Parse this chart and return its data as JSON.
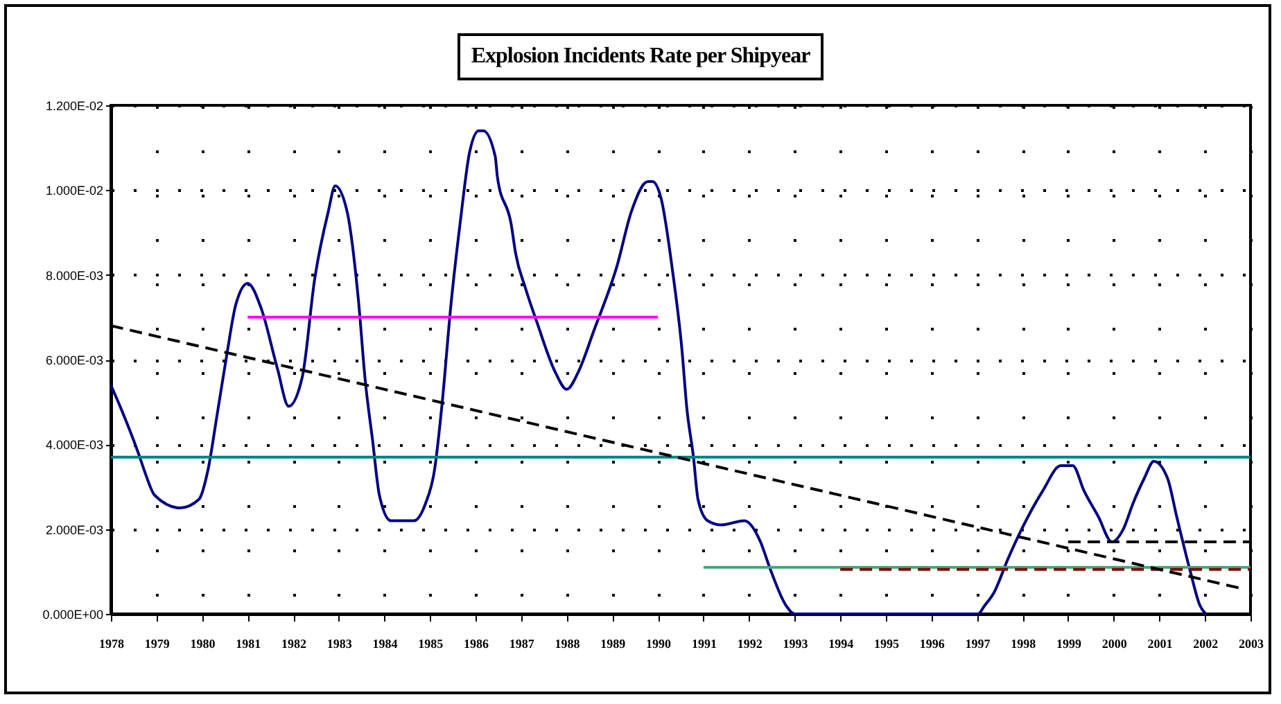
{
  "chart_data": {
    "type": "line",
    "title": "Explosion Incidents Rate per Shipyear",
    "xlim": [
      1978,
      2003
    ],
    "xticks": [
      1978,
      1979,
      1980,
      1981,
      1982,
      1983,
      1984,
      1985,
      1986,
      1987,
      1988,
      1989,
      1990,
      1991,
      1992,
      1993,
      1994,
      1995,
      1996,
      1997,
      1998,
      1999,
      2000,
      2001,
      2002,
      2003
    ],
    "ylim": [
      0,
      0.012
    ],
    "yticks": [
      {
        "value": 0,
        "label": "0.000E+00"
      },
      {
        "value": 0.002,
        "label": "2.000E-03"
      },
      {
        "value": 0.004,
        "label": "4.000E-03"
      },
      {
        "value": 0.006,
        "label": "6.000E-03"
      },
      {
        "value": 0.008,
        "label": "8.000E-03"
      },
      {
        "value": 0.01,
        "label": "1.000E-02"
      },
      {
        "value": 0.012,
        "label": "1.200E-02"
      }
    ],
    "grid": true,
    "series": [
      {
        "color": "#000080",
        "line_style": "solid",
        "x": [
          1978,
          1978.2,
          1978.6,
          1978.76,
          1978.96,
          1979.52,
          1979.93,
          1980.13,
          1980.33,
          1980.54,
          1980.74,
          1981.0,
          1981.3,
          1981.65,
          1981.9,
          1982.2,
          1982.47,
          1982.77,
          1982.92,
          1983.18,
          1983.43,
          1983.58,
          1983.74,
          1983.89,
          1984.14,
          1984.65,
          1984.9,
          1985.1,
          1985.26,
          1985.46,
          1985.67,
          1985.87,
          1986.07,
          1986.17,
          1986.43,
          1986.48,
          1986.78,
          1986.88,
          1987.09,
          1987.34,
          1987.75,
          1988.0,
          1988.25,
          1988.6,
          1989.1,
          1989.42,
          1989.78,
          1989.88,
          1990.07,
          1990.32,
          1990.53,
          1990.63,
          1990.78,
          1990.88,
          1991.09,
          1991.39,
          1991.9,
          1992.25,
          1992.45,
          1992.81,
          1993.0,
          1997.02,
          1997.17,
          1997.37,
          1997.68,
          1997.98,
          1998.44,
          1998.84,
          1999.1,
          1999.35,
          1999.66,
          1999.96,
          2000.21,
          2000.42,
          2000.67,
          2000.88,
          2001.18,
          2001.38,
          2001.68,
          2001.89,
          2002.02
        ],
        "values": [
          0.0054,
          0.0049,
          0.0038,
          0.0033,
          0.0028,
          0.0025,
          0.0027,
          0.0034,
          0.0047,
          0.0061,
          0.0073,
          0.0078,
          0.0072,
          0.0058,
          0.0049,
          0.0056,
          0.0079,
          0.0095,
          0.0101,
          0.0095,
          0.0074,
          0.0055,
          0.0041,
          0.0028,
          0.0022,
          0.0022,
          0.0026,
          0.0034,
          0.0049,
          0.0073,
          0.0093,
          0.0109,
          0.0114,
          0.0114,
          0.0108,
          0.0103,
          0.0092,
          0.0085,
          0.0077,
          0.0069,
          0.0057,
          0.0053,
          0.0057,
          0.0067,
          0.0082,
          0.0095,
          0.0102,
          0.0102,
          0.0098,
          0.0081,
          0.0062,
          0.0049,
          0.0037,
          0.0027,
          0.0022,
          0.0021,
          0.0022,
          0.0017,
          0.0011,
          0.0002,
          0,
          0,
          0.0002,
          0.0005,
          0.0013,
          0.002,
          0.0029,
          0.0035,
          0.0035,
          0.0029,
          0.0023,
          0.0017,
          0.002,
          0.0026,
          0.0032,
          0.0036,
          0.0032,
          0.0023,
          0.001,
          0.0002,
          0
        ]
      },
      {
        "color": "#ff00ff",
        "line_style": "solid",
        "x": [
          1981,
          1990
        ],
        "values": [
          0.007,
          0.007
        ]
      },
      {
        "color": "#008080",
        "line_style": "solid",
        "x": [
          1978,
          2003
        ],
        "values": [
          0.0037,
          0.0037
        ]
      },
      {
        "color": "#40a878",
        "line_style": "solid",
        "x": [
          1991,
          2003
        ],
        "values": [
          0.0011,
          0.0011
        ]
      },
      {
        "color": "#800000",
        "line_style": "dashed",
        "x": [
          1994,
          2003
        ],
        "values": [
          0.00105,
          0.00105
        ]
      },
      {
        "color": "#000000",
        "line_style": "dashed",
        "x": [
          1999,
          2003
        ],
        "values": [
          0.0017,
          0.0017
        ]
      },
      {
        "color": "#000000",
        "line_style": "dashed",
        "x": [
          1978,
          2002.8
        ],
        "values": [
          0.0068,
          0.0006
        ]
      }
    ]
  }
}
